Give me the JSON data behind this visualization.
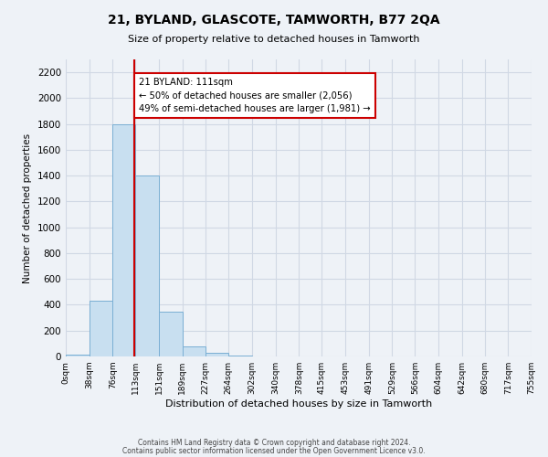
{
  "title": "21, BYLAND, GLASCOTE, TAMWORTH, B77 2QA",
  "subtitle": "Size of property relative to detached houses in Tamworth",
  "xlabel": "Distribution of detached houses by size in Tamworth",
  "ylabel": "Number of detached properties",
  "bin_edges": [
    0,
    38,
    76,
    113,
    151,
    189,
    227,
    264,
    302,
    340,
    378,
    415,
    453,
    491,
    529,
    566,
    604,
    642,
    680,
    717,
    755
  ],
  "bar_heights": [
    15,
    430,
    1800,
    1400,
    350,
    75,
    30,
    5,
    0,
    0,
    0,
    0,
    0,
    0,
    0,
    0,
    0,
    0,
    0,
    0
  ],
  "bar_color": "#c8dff0",
  "bar_edge_color": "#7aafd4",
  "property_size": 111,
  "vline_color": "#cc0000",
  "annotation_text": "21 BYLAND: 111sqm\n← 50% of detached houses are smaller (2,056)\n49% of semi-detached houses are larger (1,981) →",
  "annotation_box_edge_color": "#cc0000",
  "annotation_box_face_color": "#ffffff",
  "ylim": [
    0,
    2300
  ],
  "yticks": [
    0,
    200,
    400,
    600,
    800,
    1000,
    1200,
    1400,
    1600,
    1800,
    2000,
    2200
  ],
  "tick_labels": [
    "0sqm",
    "38sqm",
    "76sqm",
    "113sqm",
    "151sqm",
    "189sqm",
    "227sqm",
    "264sqm",
    "302sqm",
    "340sqm",
    "378sqm",
    "415sqm",
    "453sqm",
    "491sqm",
    "529sqm",
    "566sqm",
    "604sqm",
    "642sqm",
    "680sqm",
    "717sqm",
    "755sqm"
  ],
  "footer_line1": "Contains HM Land Registry data © Crown copyright and database right 2024.",
  "footer_line2": "Contains public sector information licensed under the Open Government Licence v3.0.",
  "grid_color": "#d0d8e4",
  "bg_color": "#eef2f7"
}
